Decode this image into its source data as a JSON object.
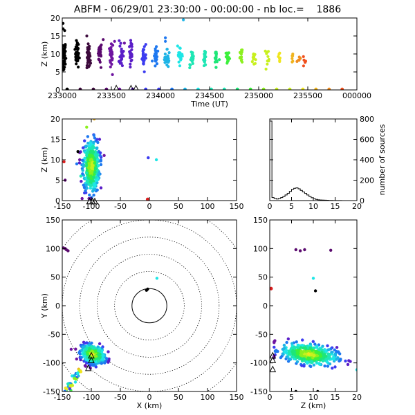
{
  "title": "ABFM - 06/29/01 23:30:00 - 00:00:00 - nb loc.=    1886",
  "palette": [
    "#000000",
    "#3c0a3c",
    "#5a0a6e",
    "#6e14a0",
    "#5a1ec8",
    "#3c3cf0",
    "#1e78f0",
    "#1eb4e6",
    "#1ee6e6",
    "#1ee6b4",
    "#1ee678",
    "#3cf03c",
    "#8cf01e",
    "#c8f01e",
    "#f0e61e",
    "#f0b41e",
    "#f08c1e",
    "#f0501e",
    "#dc1e1e"
  ],
  "chart_data": [
    {
      "id": "time-height",
      "type": "scatter",
      "xlabel": "Time (UT)",
      "ylabel": "Z (km)",
      "xticks": [
        "233000",
        "233500",
        "234000",
        "234500",
        "235000",
        "235500",
        "000000"
      ],
      "yticks": [
        "0",
        "5",
        "10",
        "15",
        "20"
      ],
      "xlim": [
        0,
        1800
      ],
      "ylim": [
        0,
        20
      ],
      "ground_markers_x": [
        30,
        110,
        190,
        270,
        350,
        430,
        510,
        590,
        670,
        750,
        830,
        910,
        990,
        1070,
        1150,
        1230,
        1310,
        1390,
        1470,
        1550,
        1630,
        1710
      ],
      "triangles": [
        {
          "x": 330,
          "z": 0.3
        },
        {
          "x": 420,
          "z": 0.3
        },
        {
          "x": 450,
          "z": 0.3
        }
      ],
      "columns": [
        {
          "x": 10,
          "center": 9.5,
          "spread": 3.5,
          "n": 45
        },
        {
          "x": 90,
          "center": 10,
          "spread": 3.2,
          "n": 40
        },
        {
          "x": 160,
          "center": 9.5,
          "spread": 3.2,
          "n": 35
        },
        {
          "x": 230,
          "center": 10,
          "spread": 3.0,
          "n": 30
        },
        {
          "x": 300,
          "center": 10,
          "spread": 3.0,
          "n": 30
        },
        {
          "x": 360,
          "center": 9.5,
          "spread": 2.8,
          "n": 25
        },
        {
          "x": 420,
          "center": 9.5,
          "spread": 2.8,
          "n": 25
        },
        {
          "x": 500,
          "center": 9.5,
          "spread": 2.8,
          "n": 25
        },
        {
          "x": 570,
          "center": 9.5,
          "spread": 2.6,
          "n": 22
        },
        {
          "x": 640,
          "center": 9.0,
          "spread": 2.6,
          "n": 20
        },
        {
          "x": 720,
          "center": 9.0,
          "spread": 2.6,
          "n": 20
        },
        {
          "x": 790,
          "center": 9.0,
          "spread": 2.6,
          "n": 18
        },
        {
          "x": 870,
          "center": 9.0,
          "spread": 2.6,
          "n": 18
        },
        {
          "x": 940,
          "center": 9.0,
          "spread": 2.4,
          "n": 16
        },
        {
          "x": 1010,
          "center": 9.0,
          "spread": 2.4,
          "n": 15
        },
        {
          "x": 1090,
          "center": 9.0,
          "spread": 2.4,
          "n": 14
        },
        {
          "x": 1170,
          "center": 9.0,
          "spread": 2.2,
          "n": 12
        },
        {
          "x": 1250,
          "center": 9.0,
          "spread": 2.2,
          "n": 10
        },
        {
          "x": 1330,
          "center": 9.0,
          "spread": 2.0,
          "n": 8
        },
        {
          "x": 1400,
          "center": 8.5,
          "spread": 1.8,
          "n": 6
        },
        {
          "x": 1440,
          "center": 8.5,
          "spread": 1.5,
          "n": 5
        },
        {
          "x": 1480,
          "center": 8.5,
          "spread": 1.5,
          "n": 5
        }
      ],
      "outliers": [
        {
          "x": 5,
          "z": 18.5
        },
        {
          "x": 5,
          "z": 17
        },
        {
          "x": 15,
          "z": 16.5
        },
        {
          "x": 150,
          "z": 15
        },
        {
          "x": 250,
          "z": 14
        },
        {
          "x": 320,
          "z": 13.5
        },
        {
          "x": 380,
          "z": 13
        },
        {
          "x": 420,
          "z": 13
        },
        {
          "x": 630,
          "z": 14.5
        },
        {
          "x": 630,
          "z": 13.5
        },
        {
          "x": 740,
          "z": 19.5
        }
      ]
    },
    {
      "id": "x-height",
      "type": "scatter",
      "xlabel": "",
      "ylabel": "Z (km)",
      "xticks": [
        "-150",
        "-100",
        "-50",
        "0",
        "50",
        "100",
        "150"
      ],
      "yticks": [
        "0",
        "5",
        "10",
        "15",
        "20"
      ],
      "xlim": [
        -150,
        150
      ],
      "ylim": [
        0,
        20
      ],
      "cluster": {
        "x": -100,
        "z": 8.5,
        "sx": 7,
        "sz": 3.2,
        "n": 420
      },
      "extras": [
        {
          "x": -123,
          "z": 12
        },
        {
          "x": -120,
          "z": 10
        },
        {
          "x": -125,
          "z": 9
        },
        {
          "x": -118,
          "z": 6
        },
        {
          "x": -108,
          "z": 18
        },
        {
          "x": -95,
          "z": 20
        },
        {
          "x": -147,
          "z": 9.5
        },
        {
          "x": -145,
          "z": 5
        },
        {
          "x": -2,
          "z": 10.5
        },
        {
          "x": 12,
          "z": 10
        }
      ],
      "red_marker": {
        "x": -3,
        "z": 0.3
      },
      "triangles": [
        {
          "x": -103,
          "z": -0.3
        },
        {
          "x": -98,
          "z": -0.3
        },
        {
          "x": -94,
          "z": -0.3
        }
      ]
    },
    {
      "id": "height-histogram",
      "type": "bar",
      "xlabel": "",
      "ylabel": "number of sources",
      "xticks": [
        "0",
        "5",
        "10",
        "15",
        "20"
      ],
      "yticks": [
        "0",
        "200",
        "400",
        "600",
        "800"
      ],
      "xlim": [
        0,
        20
      ],
      "ylim": [
        0,
        800
      ],
      "bin_width": 0.5,
      "values": [
        780,
        30,
        20,
        15,
        20,
        30,
        40,
        55,
        70,
        90,
        110,
        120,
        125,
        115,
        100,
        85,
        70,
        55,
        40,
        28,
        18,
        12,
        8,
        6,
        5,
        4,
        3,
        2,
        2,
        1,
        1,
        1,
        1,
        0,
        0,
        0,
        0,
        0,
        0,
        0
      ]
    },
    {
      "id": "plan-view",
      "type": "scatter",
      "xlabel": "X (km)",
      "ylabel": "Y (km)",
      "xticks": [
        "-150",
        "-100",
        "-50",
        "0",
        "50",
        "100",
        "150"
      ],
      "yticks": [
        "-150",
        "-100",
        "-50",
        "0",
        "50",
        "100",
        "150"
      ],
      "xlim": [
        -150,
        150
      ],
      "ylim": [
        -150,
        150
      ],
      "range_rings_km": [
        30,
        60,
        90,
        120,
        150,
        180
      ],
      "cluster": {
        "x": -97,
        "y": -85,
        "sx": 10,
        "sy": 10,
        "n": 380
      },
      "tail": {
        "x0": -120,
        "y0": -112,
        "x1": -145,
        "y1": -150,
        "n": 40
      },
      "extras": [
        {
          "x": -148,
          "y": 101
        },
        {
          "x": -145,
          "y": 100
        },
        {
          "x": -143,
          "y": 98
        },
        {
          "x": -140,
          "y": 96
        },
        {
          "x": -5,
          "y": 27
        },
        {
          "x": -3,
          "y": 29
        },
        {
          "x": 13,
          "y": 48
        }
      ],
      "triangles": [
        {
          "x": -100,
          "y": -88
        },
        {
          "x": -100,
          "y": -96
        },
        {
          "x": -105,
          "y": -110
        }
      ]
    },
    {
      "id": "height-y",
      "type": "scatter",
      "xlabel": "Z (km)",
      "ylabel": "",
      "xticks": [
        "0",
        "5",
        "10",
        "15",
        "20"
      ],
      "yticks": [
        "-150",
        "-100",
        "-50",
        "0",
        "50",
        "100",
        "150"
      ],
      "xlim": [
        0,
        20
      ],
      "ylim": [
        -150,
        150
      ],
      "cluster": {
        "z": 9,
        "y": -85,
        "sz": 3.2,
        "sy": 12,
        "n": 420
      },
      "extras": [
        {
          "z": 6,
          "y": 98
        },
        {
          "z": 7,
          "y": 96
        },
        {
          "z": 8,
          "y": 98
        },
        {
          "z": 14,
          "y": 97
        },
        {
          "z": 10,
          "y": 48
        },
        {
          "z": 10.5,
          "y": 26
        },
        {
          "z": 20,
          "y": -112
        },
        {
          "z": 6,
          "y": -150
        },
        {
          "z": 11,
          "y": -150
        }
      ],
      "red_marker": {
        "z": 0.3,
        "y": 30
      },
      "triangles": [
        {
          "z": 0.2,
          "y": -88
        },
        {
          "z": 0.2,
          "y": -96
        },
        {
          "z": 0.2,
          "y": -112
        }
      ]
    }
  ]
}
